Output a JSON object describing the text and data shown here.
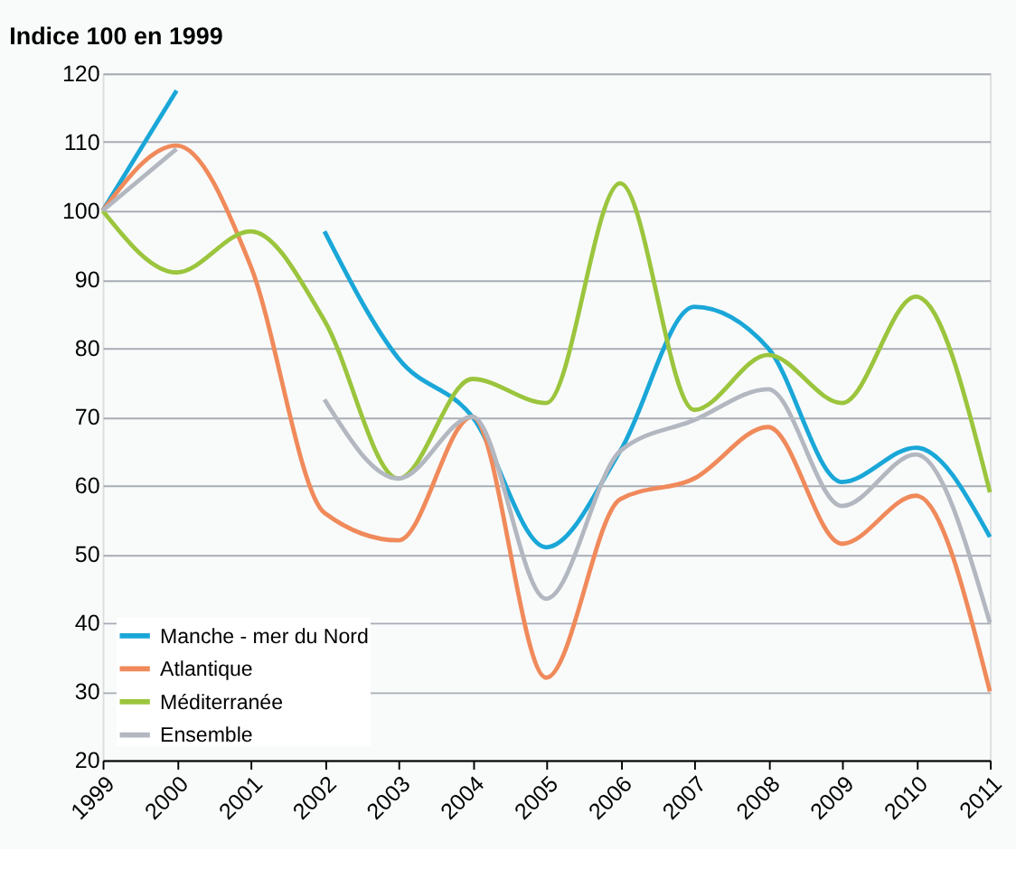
{
  "chart_data": {
    "type": "line",
    "title": "Indice 100 en 1999",
    "categories": [
      "1999",
      "2000",
      "2001",
      "2002",
      "2003",
      "2004",
      "2005",
      "2006",
      "2007",
      "2008",
      "2009",
      "2010",
      "2011"
    ],
    "series": [
      {
        "name": "Manche - mer du Nord",
        "color": "#1aa7d8",
        "values": [
          100,
          117.5,
          null,
          97,
          78.5,
          70,
          51,
          65,
          86,
          80,
          60.5,
          65.5,
          52.5
        ]
      },
      {
        "name": "Atlantique",
        "color": "#f08a5b",
        "values": [
          100,
          109.5,
          92,
          56,
          52,
          70,
          32,
          58,
          61,
          68.5,
          51.5,
          58.5,
          30
        ]
      },
      {
        "name": "Méditerranée",
        "color": "#9bc53d",
        "values": [
          100,
          91,
          97,
          84,
          61,
          75.5,
          72,
          104,
          71,
          79,
          72,
          87.5,
          59
        ]
      },
      {
        "name": "Ensemble",
        "color": "#b3b7c0",
        "values": [
          100,
          109,
          null,
          72.5,
          61,
          70,
          43.5,
          65,
          69.5,
          74,
          57,
          64.5,
          40
        ]
      }
    ],
    "ylim": [
      20,
      120
    ],
    "yticks": [
      20,
      30,
      40,
      50,
      60,
      70,
      80,
      90,
      100,
      110,
      120
    ],
    "grid": "y",
    "legend": "bottom left",
    "marker": "none",
    "line_style": "solid"
  }
}
